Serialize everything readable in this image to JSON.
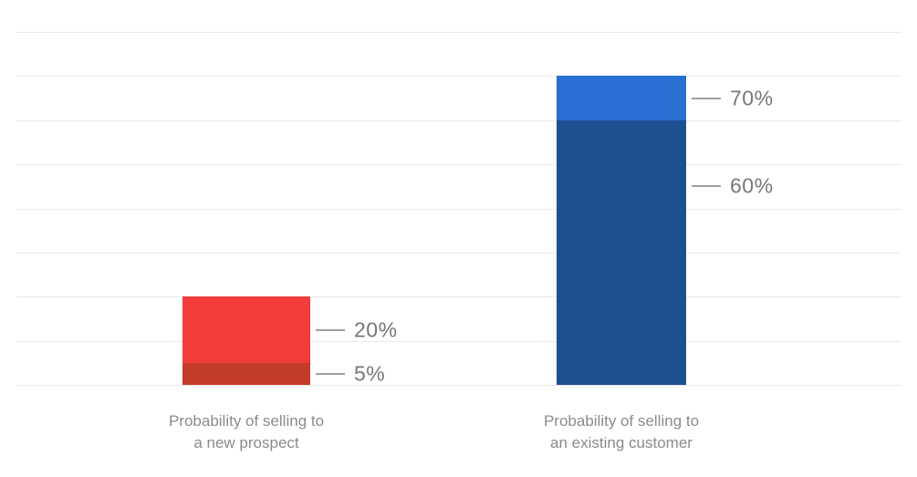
{
  "page": {
    "background": "#ffffff"
  },
  "chart_data": {
    "type": "bar",
    "title": "",
    "xlabel": "",
    "ylabel": "",
    "ylim": [
      0,
      80
    ],
    "grid": true,
    "gridline_step_pct": 10,
    "grid_color": "#e9e9e9",
    "callout_line_color": "#a0a0a0",
    "callout_label_color": "#777777",
    "category_label_color": "#8b8b8b",
    "legend": false,
    "categories": [
      {
        "line1": "Probability of selling to",
        "line2": "a new prospect"
      },
      {
        "line1": "Probability of selling to",
        "line2": "an existing customer"
      }
    ],
    "bars": [
      {
        "name": "new-prospect",
        "range_low_pct": 5,
        "range_high_pct": 20,
        "segments": [
          {
            "from": 0,
            "to": 5,
            "color": "#c23b2b",
            "callout_label": "5%"
          },
          {
            "from": 5,
            "to": 20,
            "color": "#f23c3c",
            "callout_label": "20%"
          }
        ]
      },
      {
        "name": "existing-customer",
        "range_low_pct": 60,
        "range_high_pct": 70,
        "segments": [
          {
            "from": 0,
            "to": 60,
            "color": "#1d4f91",
            "callout_label": "60%"
          },
          {
            "from": 60,
            "to": 70,
            "color": "#2a6fd2",
            "callout_label": "70%"
          }
        ]
      }
    ]
  }
}
